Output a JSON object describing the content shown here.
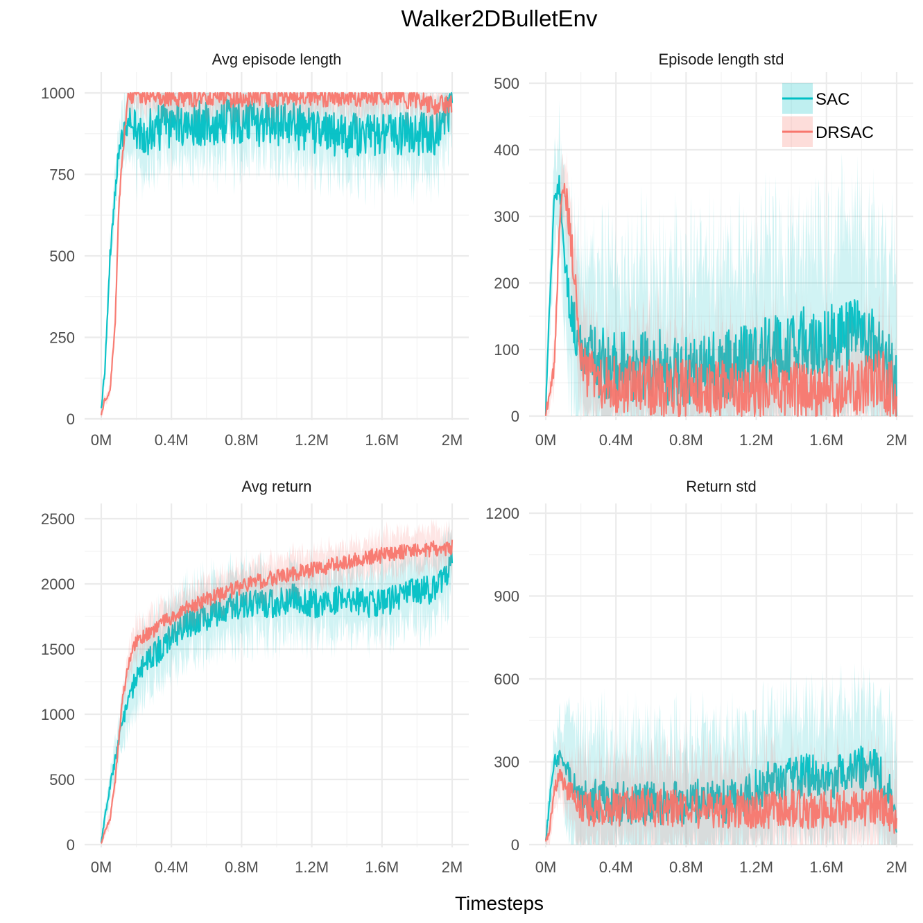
{
  "figure_title": "Walker2DBulletEnv",
  "x_label": "Timesteps",
  "legend": [
    {
      "name": "SAC",
      "color": "#00BFC4"
    },
    {
      "name": "DRSAC",
      "color": "#F8766D"
    }
  ],
  "chart_data": [
    {
      "type": "line",
      "title": "Avg episode length",
      "xlabel": "Timesteps",
      "ylabel": "",
      "x_ticks": [
        "0M",
        "0.4M",
        "0.8M",
        "1.2M",
        "1.6M",
        "2M"
      ],
      "x_tick_values": [
        0,
        0.4,
        0.8,
        1.2,
        1.6,
        2.0
      ],
      "xlim": [
        0,
        2.0
      ],
      "y_ticks": [
        "0",
        "250",
        "500",
        "750",
        "1000"
      ],
      "y_tick_values": [
        0,
        250,
        500,
        750,
        1000
      ],
      "ylim": [
        0,
        1000
      ],
      "x": [
        0,
        0.02,
        0.05,
        0.08,
        0.1,
        0.12,
        0.15,
        0.18,
        0.2,
        0.25,
        0.3,
        0.4,
        0.5,
        0.6,
        0.7,
        0.8,
        0.9,
        1.0,
        1.1,
        1.2,
        1.3,
        1.4,
        1.5,
        1.6,
        1.7,
        1.8,
        1.9,
        2.0
      ],
      "series": [
        {
          "name": "SAC",
          "values": [
            30,
            150,
            500,
            700,
            820,
            860,
            900,
            920,
            880,
            870,
            890,
            900,
            910,
            905,
            910,
            915,
            900,
            905,
            900,
            880,
            880,
            870,
            880,
            870,
            875,
            870,
            880,
            960
          ],
          "band": 130,
          "jitter": 70
        },
        {
          "name": "DRSAC",
          "values": [
            10,
            60,
            80,
            300,
            650,
            800,
            980,
            990,
            990,
            990,
            985,
            990,
            985,
            990,
            985,
            985,
            990,
            985,
            990,
            990,
            985,
            990,
            985,
            990,
            985,
            980,
            960,
            970
          ],
          "band": 60,
          "jitter": 30
        }
      ]
    },
    {
      "type": "line",
      "title": "Episode length std",
      "xlabel": "Timesteps",
      "ylabel": "",
      "x_ticks": [
        "0M",
        "0.4M",
        "0.8M",
        "1.2M",
        "1.6M",
        "2M"
      ],
      "x_tick_values": [
        0,
        0.4,
        0.8,
        1.2,
        1.6,
        2.0
      ],
      "xlim": [
        0,
        2.0
      ],
      "y_ticks": [
        "0",
        "100",
        "200",
        "300",
        "400",
        "500"
      ],
      "y_tick_values": [
        0,
        100,
        200,
        300,
        400,
        500
      ],
      "ylim": [
        0,
        500
      ],
      "x": [
        0,
        0.02,
        0.05,
        0.08,
        0.1,
        0.12,
        0.15,
        0.18,
        0.2,
        0.25,
        0.3,
        0.4,
        0.5,
        0.6,
        0.7,
        0.8,
        0.9,
        1.0,
        1.1,
        1.2,
        1.3,
        1.4,
        1.5,
        1.6,
        1.7,
        1.8,
        1.9,
        2.0
      ],
      "series": [
        {
          "name": "SAC",
          "values": [
            10,
            150,
            330,
            350,
            280,
            200,
            150,
            120,
            100,
            90,
            80,
            75,
            70,
            80,
            70,
            65,
            75,
            70,
            80,
            90,
            100,
            110,
            115,
            110,
            120,
            125,
            110,
            40
          ],
          "band": 180,
          "jitter": 55
        },
        {
          "name": "DRSAC",
          "values": [
            5,
            30,
            80,
            300,
            350,
            320,
            250,
            150,
            80,
            60,
            50,
            45,
            50,
            45,
            40,
            45,
            40,
            40,
            35,
            40,
            45,
            40,
            40,
            45,
            40,
            40,
            60,
            30
          ],
          "band": 90,
          "jitter": 45
        }
      ]
    },
    {
      "type": "line",
      "title": "Avg return",
      "xlabel": "Timesteps",
      "ylabel": "",
      "x_ticks": [
        "0M",
        "0.4M",
        "0.8M",
        "1.2M",
        "1.6M",
        "2M"
      ],
      "x_tick_values": [
        0,
        0.4,
        0.8,
        1.2,
        1.6,
        2.0
      ],
      "xlim": [
        0,
        2.0
      ],
      "y_ticks": [
        "0",
        "500",
        "1000",
        "1500",
        "2000",
        "2500"
      ],
      "y_tick_values": [
        0,
        500,
        1000,
        1500,
        2000,
        2500
      ],
      "ylim": [
        0,
        2500
      ],
      "x": [
        0,
        0.02,
        0.05,
        0.08,
        0.1,
        0.12,
        0.15,
        0.18,
        0.2,
        0.25,
        0.3,
        0.4,
        0.5,
        0.6,
        0.7,
        0.8,
        0.9,
        1.0,
        1.1,
        1.2,
        1.3,
        1.4,
        1.5,
        1.6,
        1.7,
        1.8,
        1.9,
        2.0
      ],
      "series": [
        {
          "name": "SAC",
          "values": [
            20,
            200,
            450,
            650,
            800,
            950,
            1050,
            1200,
            1300,
            1400,
            1450,
            1600,
            1700,
            1750,
            1800,
            1850,
            1850,
            1850,
            1900,
            1850,
            1850,
            1900,
            1850,
            1850,
            1900,
            1950,
            1950,
            2150
          ],
          "band": 280,
          "jitter": 110
        },
        {
          "name": "DRSAC",
          "values": [
            10,
            100,
            200,
            500,
            800,
            1100,
            1350,
            1500,
            1560,
            1600,
            1650,
            1750,
            1820,
            1880,
            1930,
            1980,
            2020,
            2050,
            2080,
            2110,
            2140,
            2170,
            2200,
            2220,
            2240,
            2260,
            2270,
            2280
          ],
          "band": 160,
          "jitter": 60
        }
      ]
    },
    {
      "type": "line",
      "title": "Return std",
      "xlabel": "Timesteps",
      "ylabel": "",
      "x_ticks": [
        "0M",
        "0.4M",
        "0.8M",
        "1.2M",
        "1.6M",
        "2M"
      ],
      "x_tick_values": [
        0,
        0.4,
        0.8,
        1.2,
        1.6,
        2.0
      ],
      "xlim": [
        0,
        2.0
      ],
      "y_ticks": [
        "0",
        "300",
        "600",
        "900",
        "1200"
      ],
      "y_tick_values": [
        0,
        300,
        600,
        900,
        1200
      ],
      "ylim": [
        0,
        1200
      ],
      "x": [
        0,
        0.02,
        0.05,
        0.08,
        0.1,
        0.12,
        0.15,
        0.18,
        0.2,
        0.25,
        0.3,
        0.4,
        0.5,
        0.6,
        0.7,
        0.8,
        0.9,
        1.0,
        1.1,
        1.2,
        1.3,
        1.4,
        1.5,
        1.6,
        1.7,
        1.8,
        1.9,
        2.0
      ],
      "series": [
        {
          "name": "SAC",
          "values": [
            10,
            150,
            300,
            320,
            310,
            280,
            230,
            180,
            170,
            160,
            155,
            150,
            150,
            155,
            150,
            150,
            160,
            155,
            160,
            200,
            230,
            240,
            250,
            240,
            250,
            280,
            260,
            120
          ],
          "band": 280,
          "jitter": 80
        },
        {
          "name": "DRSAC",
          "values": [
            5,
            50,
            200,
            250,
            220,
            200,
            180,
            150,
            140,
            130,
            135,
            130,
            140,
            130,
            135,
            130,
            130,
            125,
            130,
            130,
            125,
            130,
            125,
            130,
            125,
            130,
            140,
            100
          ],
          "band": 180,
          "jitter": 70
        }
      ]
    }
  ]
}
